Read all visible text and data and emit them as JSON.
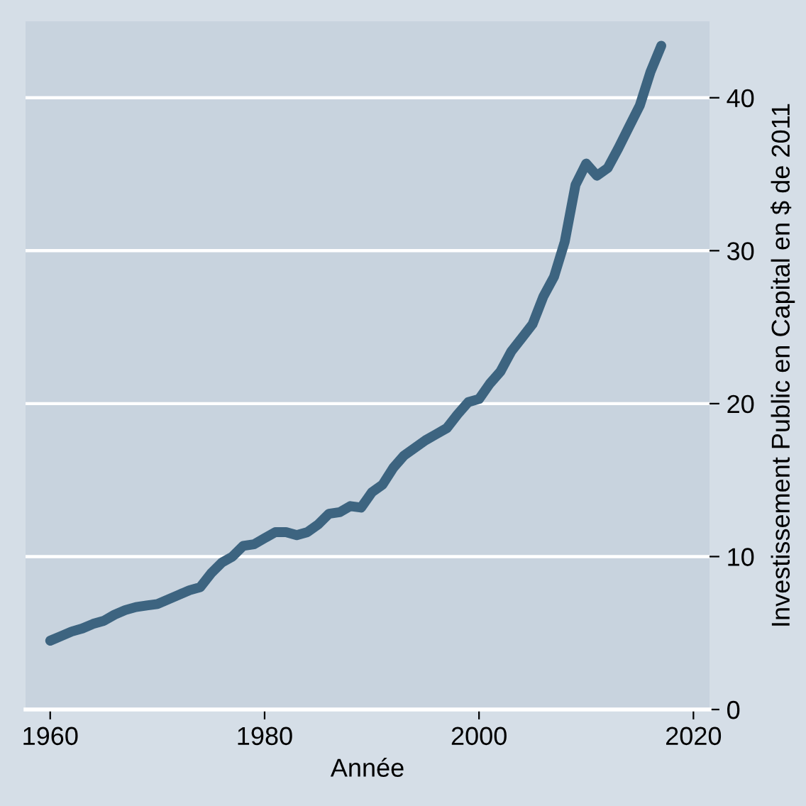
{
  "chart_data": {
    "type": "line",
    "xlabel": "Année",
    "ylabel": "Investissement Public en Capital en $ de 2011",
    "x": [
      1960,
      1961,
      1962,
      1963,
      1964,
      1965,
      1966,
      1967,
      1968,
      1969,
      1970,
      1971,
      1972,
      1973,
      1974,
      1975,
      1976,
      1977,
      1978,
      1979,
      1980,
      1981,
      1982,
      1983,
      1984,
      1985,
      1986,
      1987,
      1988,
      1989,
      1990,
      1991,
      1992,
      1993,
      1994,
      1995,
      1996,
      1997,
      1998,
      1999,
      2000,
      2001,
      2002,
      2003,
      2004,
      2005,
      2006,
      2007,
      2008,
      2009,
      2010,
      2011,
      2012,
      2013,
      2014,
      2015,
      2016,
      2017
    ],
    "series": [
      {
        "color": "#3d6480",
        "values": [
          4.5,
          4.8,
          5.1,
          5.3,
          5.6,
          5.8,
          6.2,
          6.5,
          6.7,
          6.8,
          6.9,
          7.2,
          7.5,
          7.8,
          8.0,
          8.9,
          9.6,
          10.0,
          10.7,
          10.8,
          11.2,
          11.6,
          11.6,
          11.4,
          11.6,
          12.1,
          12.8,
          12.9,
          13.3,
          13.2,
          14.2,
          14.7,
          15.8,
          16.6,
          17.1,
          17.6,
          18.0,
          18.4,
          19.3,
          20.1,
          20.3,
          21.3,
          22.1,
          23.4,
          24.3,
          25.2,
          27.0,
          28.3,
          30.6,
          34.3,
          35.7,
          34.9,
          35.4,
          36.7,
          38.1,
          39.5,
          41.7,
          43.4
        ]
      }
    ],
    "xlim": [
      1957.7,
      2021.5
    ],
    "ylim": [
      0,
      45
    ],
    "xticks": [
      1960,
      1980,
      2000,
      2020
    ],
    "yticks": [
      0,
      10,
      20,
      30,
      40
    ],
    "grid": "y",
    "legend": false,
    "marker": "none",
    "line_style": "solid"
  }
}
